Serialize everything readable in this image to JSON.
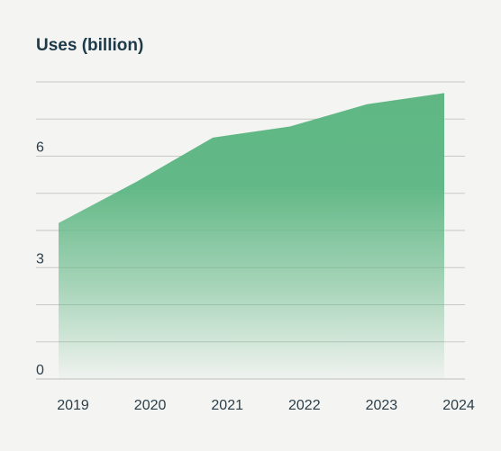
{
  "chart_data": {
    "type": "area",
    "title": "Uses (billion)",
    "xlabel": "",
    "ylabel": "",
    "categories": [
      "2019",
      "2020",
      "2021",
      "2022",
      "2023",
      "2024"
    ],
    "series": [
      {
        "values": [
          4.2,
          5.3,
          6.5,
          6.8,
          7.4,
          7.7
        ]
      }
    ],
    "ylim": [
      0,
      8
    ],
    "ytick_labels": [
      "0",
      "3",
      "6"
    ],
    "yticks": [
      0,
      3,
      6
    ],
    "grid": true,
    "legend": "none",
    "colors": {
      "fill": "#5fb784",
      "grid": "#c9c9c4",
      "text": "#2a3e4a",
      "title": "#1c3a4a",
      "background": "#f4f4f2"
    }
  }
}
